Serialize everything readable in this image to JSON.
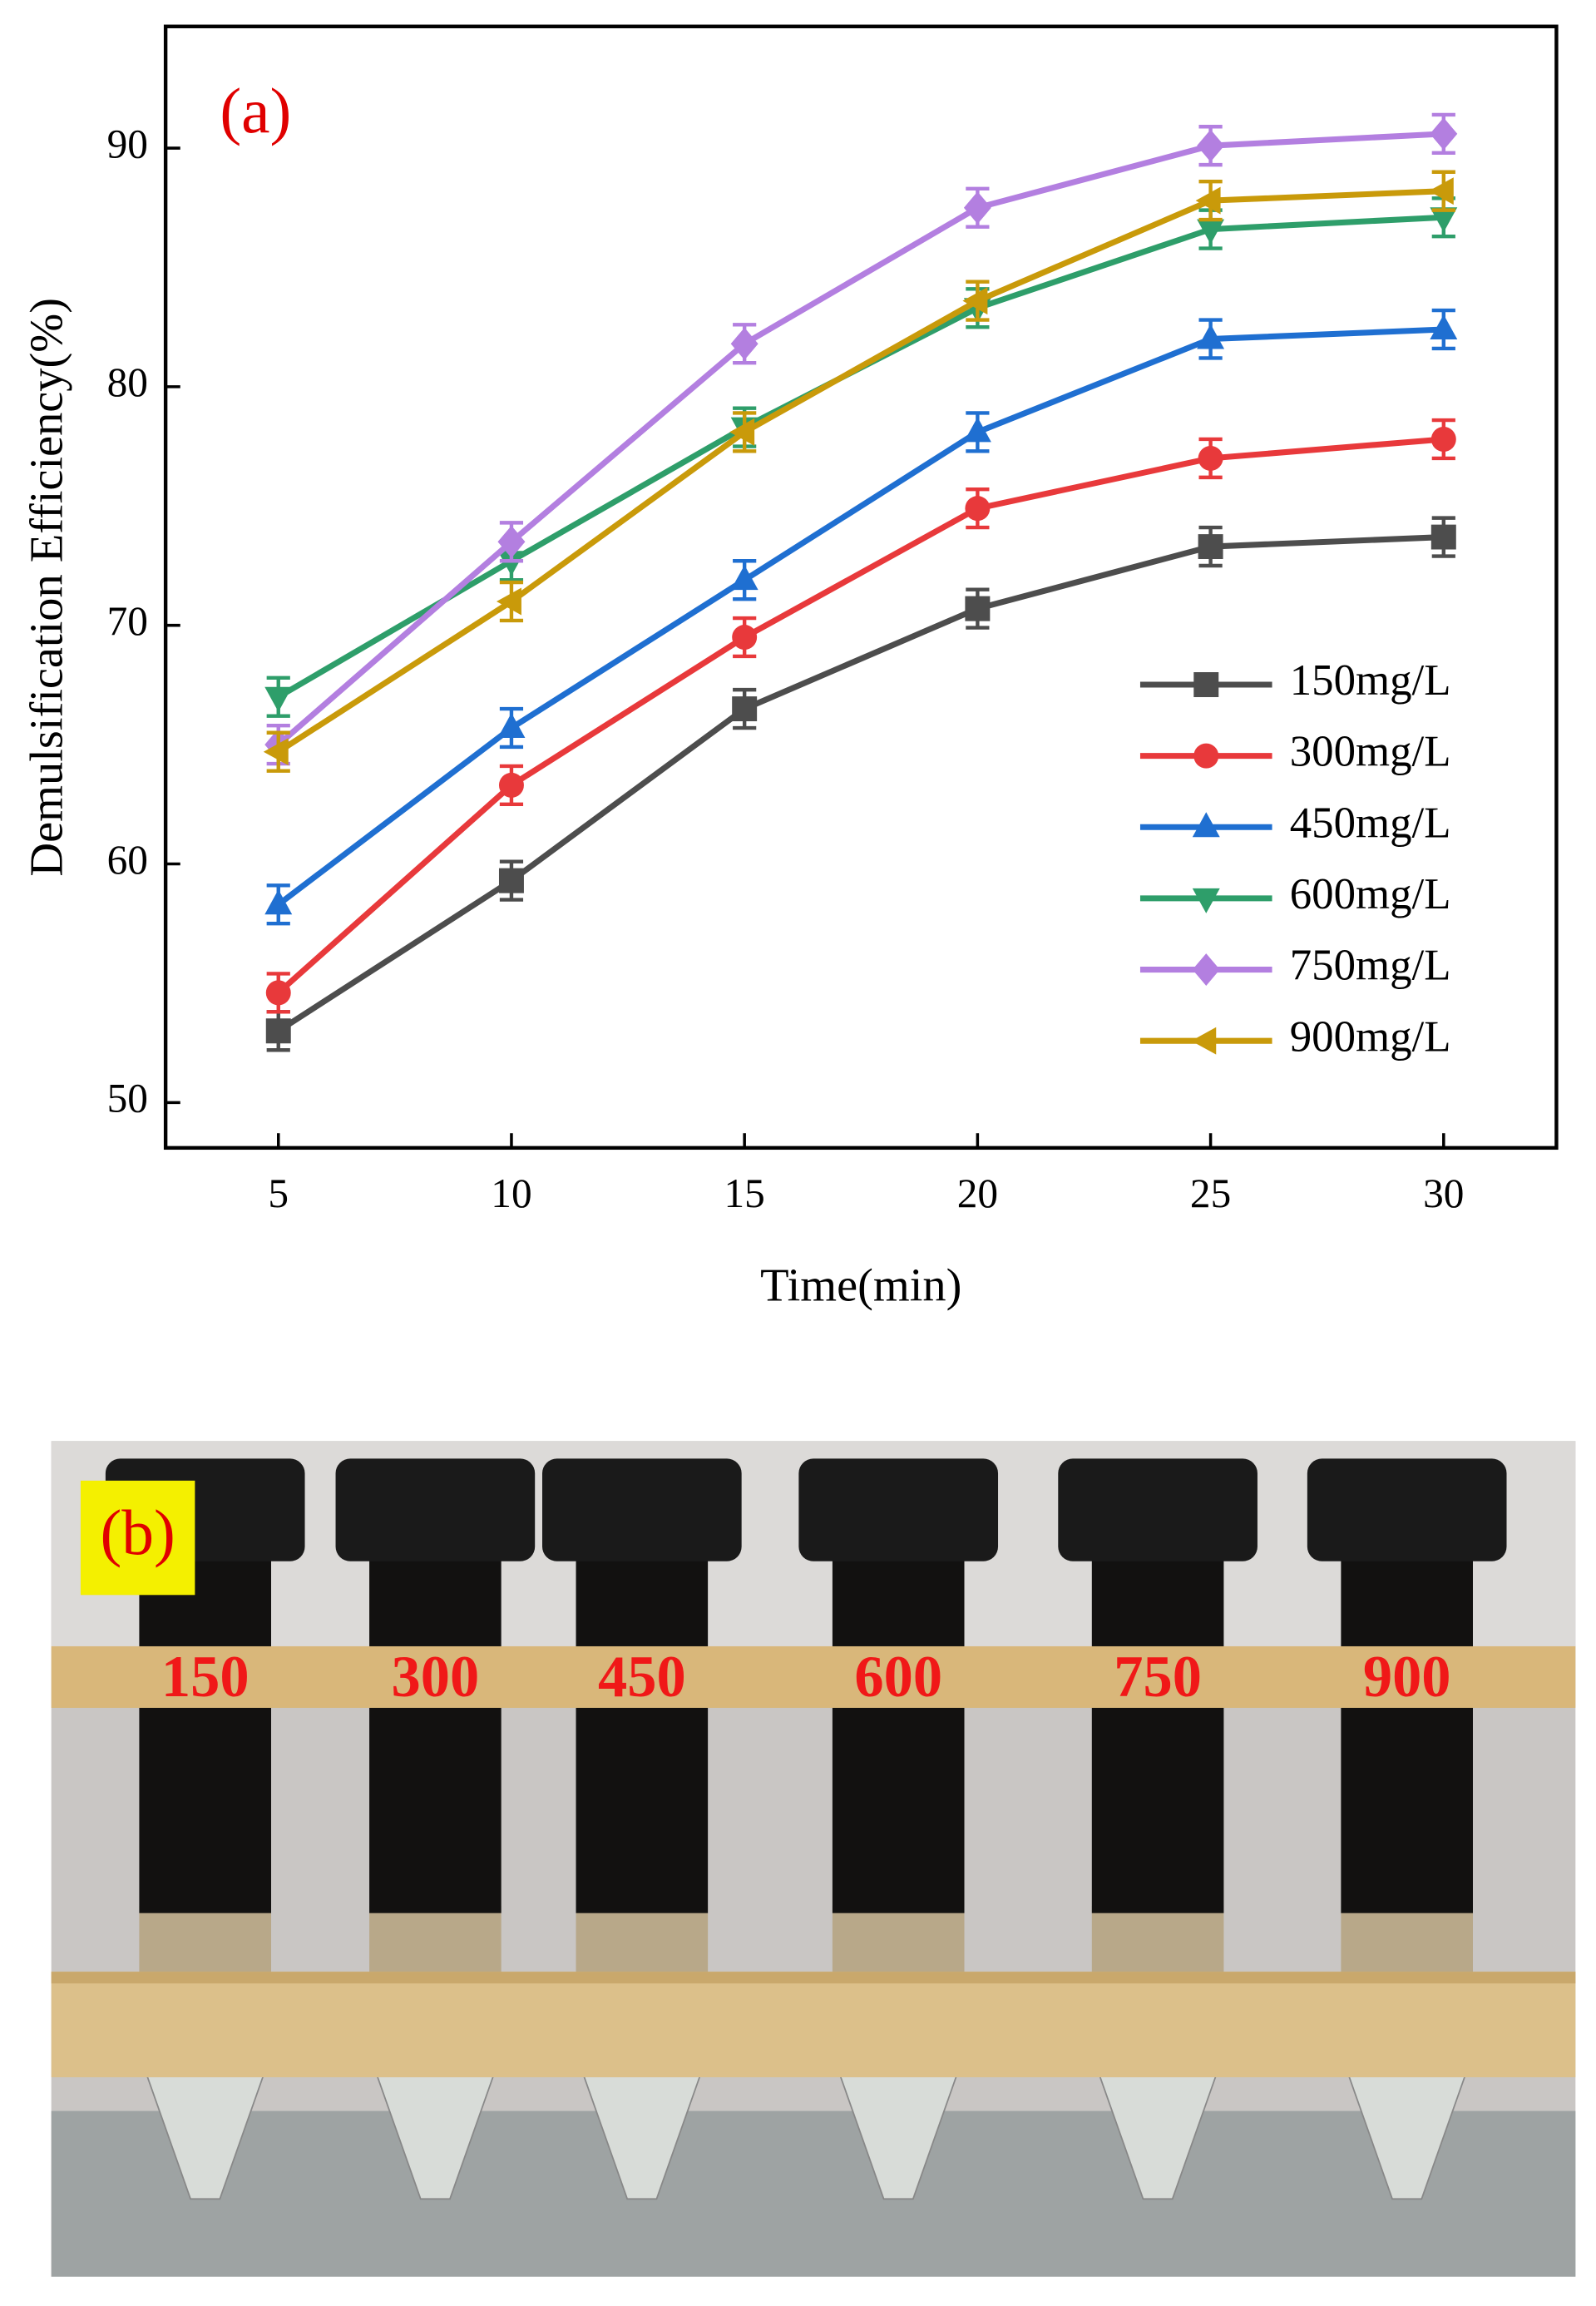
{
  "chart_data": {
    "type": "line",
    "panel_label": "(a)",
    "x_label": "Time(min)",
    "y_label": "Demulsification Efficiency(%)",
    "x": [
      5,
      10,
      15,
      20,
      25,
      30
    ],
    "xlim": [
      2.58,
      32.42
    ],
    "xticks": [
      5,
      10,
      15,
      20,
      25,
      30
    ],
    "ylim": [
      48.1,
      95.1
    ],
    "yticks": [
      50,
      60,
      70,
      80,
      90
    ],
    "grid": false,
    "legend": "lower right",
    "series": [
      {
        "name": "150mg/L",
        "color": "#4d4d4d",
        "marker": "square",
        "values": [
          53.0,
          59.3,
          66.5,
          70.7,
          73.3,
          73.7
        ],
        "errors": [
          0.8,
          0.8,
          0.8,
          0.8,
          0.8,
          0.8
        ]
      },
      {
        "name": "300mg/L",
        "color": "#e8393b",
        "marker": "circle",
        "values": [
          54.6,
          63.3,
          69.5,
          74.9,
          77.0,
          77.8
        ],
        "errors": [
          0.8,
          0.8,
          0.8,
          0.8,
          0.8,
          0.8
        ]
      },
      {
        "name": "450mg/L",
        "color": "#1f6fd1",
        "marker": "triangle-up",
        "values": [
          58.3,
          65.7,
          71.9,
          78.1,
          82.0,
          82.4
        ],
        "errors": [
          0.8,
          0.8,
          0.8,
          0.8,
          0.8,
          0.8
        ]
      },
      {
        "name": "600mg/L",
        "color": "#2e9e6a",
        "marker": "triangle-down",
        "values": [
          67.0,
          72.7,
          78.3,
          83.3,
          86.6,
          87.1
        ],
        "errors": [
          0.8,
          0.8,
          0.8,
          0.8,
          0.8,
          0.8
        ]
      },
      {
        "name": "750mg/L",
        "color": "#b37fe0",
        "marker": "diamond",
        "values": [
          65.0,
          73.5,
          81.8,
          87.5,
          90.1,
          90.6
        ],
        "errors": [
          0.8,
          0.8,
          0.8,
          0.8,
          0.8,
          0.8
        ]
      },
      {
        "name": "900mg/L",
        "color": "#c99a0a",
        "marker": "triangle-left",
        "values": [
          64.7,
          71.0,
          78.1,
          83.6,
          87.8,
          88.2
        ],
        "errors": [
          0.8,
          0.8,
          0.8,
          0.8,
          0.8,
          0.8
        ]
      }
    ]
  },
  "photo": {
    "panel_label": "(b)",
    "tube_labels": [
      "150",
      "300",
      "450",
      "600",
      "750",
      "900"
    ]
  }
}
